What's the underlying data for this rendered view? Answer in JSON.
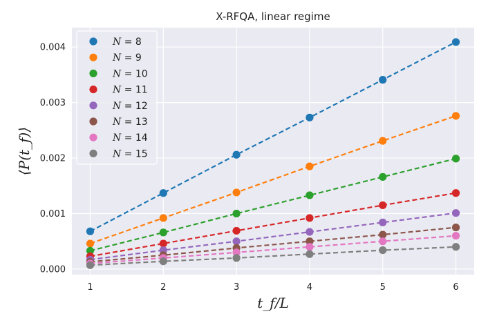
{
  "chart_data": {
    "type": "line",
    "title": "X-RFQA, linear regime",
    "xlabel": "t_f/L",
    "ylabel": "⟨P(t_f)⟩",
    "x": [
      1,
      2,
      3,
      4,
      5,
      6
    ],
    "xlim": [
      0.75,
      6.25
    ],
    "ylim": [
      -0.0001,
      0.00435
    ],
    "xticks": [
      "1",
      "2",
      "3",
      "4",
      "5",
      "6"
    ],
    "yticks": [
      0,
      0.001,
      0.002,
      0.003,
      0.004
    ],
    "ytick_labels": [
      "0.000",
      "0.001",
      "0.002",
      "0.003",
      "0.004"
    ],
    "grid": true,
    "legend_position": "top-left",
    "series": [
      {
        "name": "N = 8",
        "n": "8",
        "color": "#1f77b4",
        "values": [
          0.00068,
          0.00137,
          0.00206,
          0.00273,
          0.00341,
          0.00409
        ]
      },
      {
        "name": "N = 9",
        "n": "9",
        "color": "#ff7f0e",
        "values": [
          0.00046,
          0.00092,
          0.00138,
          0.00185,
          0.00231,
          0.00276
        ]
      },
      {
        "name": "N = 10",
        "n": "10",
        "color": "#2ca02c",
        "values": [
          0.00033,
          0.00066,
          0.001,
          0.00133,
          0.00166,
          0.00199
        ]
      },
      {
        "name": "N = 11",
        "n": "11",
        "color": "#d62728",
        "values": [
          0.00023,
          0.00046,
          0.00069,
          0.00092,
          0.00115,
          0.00137
        ]
      },
      {
        "name": "N = 12",
        "n": "12",
        "color": "#9467bd",
        "values": [
          0.00017,
          0.00034,
          0.0005,
          0.00067,
          0.00084,
          0.00101
        ]
      },
      {
        "name": "N = 13",
        "n": "13",
        "color": "#8c564b",
        "values": [
          0.00013,
          0.00025,
          0.00038,
          0.0005,
          0.00062,
          0.00075
        ]
      },
      {
        "name": "N = 14",
        "n": "14",
        "color": "#e377c2",
        "values": [
          0.0001,
          0.0002,
          0.0003,
          0.0004,
          0.0005,
          0.0006
        ]
      },
      {
        "name": "N = 15",
        "n": "15",
        "color": "#7f7f7f",
        "values": [
          7e-05,
          0.00014,
          0.0002,
          0.00027,
          0.00034,
          0.0004
        ]
      }
    ]
  }
}
